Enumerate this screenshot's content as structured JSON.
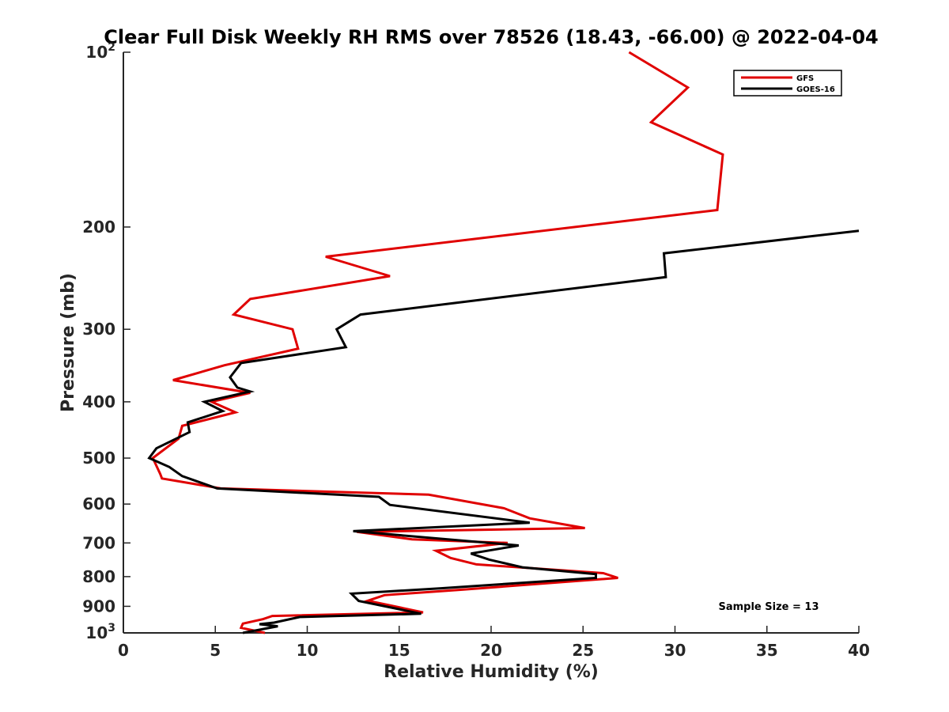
{
  "chart_data": {
    "type": "line",
    "title": "Clear Full Disk Weekly RH RMS over 78526 (18.43, -66.00) @ 2022-04-04",
    "xlabel": "Relative Humidity (%)",
    "ylabel": "Pressure (mb)",
    "xlim": [
      0,
      40
    ],
    "ylim": [
      100,
      1000
    ],
    "y_scale": "log",
    "y_reversed": true,
    "x_ticks": [
      "0",
      "5",
      "10",
      "15",
      "20",
      "25",
      "30",
      "35",
      "40"
    ],
    "y_ticks": [
      {
        "value": 100,
        "base": "10",
        "exp": "2"
      },
      {
        "value": 200,
        "label": "200"
      },
      {
        "value": 300,
        "label": "300"
      },
      {
        "value": 400,
        "label": "400"
      },
      {
        "value": 500,
        "label": "500"
      },
      {
        "value": 600,
        "label": "600"
      },
      {
        "value": 700,
        "label": "700"
      },
      {
        "value": 800,
        "label": "800"
      },
      {
        "value": 900,
        "label": "900"
      },
      {
        "value": 1000,
        "base": "10",
        "exp": "3"
      }
    ],
    "legend_position": "top-right",
    "annotation": "Sample Size = 13",
    "series": [
      {
        "name": "GFS",
        "color": "#e00000",
        "points": [
          [
            27.5,
            100
          ],
          [
            30.7,
            115
          ],
          [
            28.7,
            132
          ],
          [
            32.6,
            150
          ],
          [
            32.3,
            187
          ],
          [
            11.0,
            225
          ],
          [
            14.5,
            243
          ],
          [
            6.9,
            266
          ],
          [
            6.0,
            283
          ],
          [
            9.2,
            300
          ],
          [
            9.5,
            324
          ],
          [
            5.5,
            346
          ],
          [
            2.7,
            367
          ],
          [
            6.9,
            386
          ],
          [
            4.8,
            400
          ],
          [
            6.1,
            417
          ],
          [
            3.2,
            440
          ],
          [
            3.0,
            463
          ],
          [
            1.6,
            500
          ],
          [
            2.0,
            532
          ],
          [
            2.1,
            542
          ],
          [
            5.3,
            564
          ],
          [
            16.6,
            578
          ],
          [
            20.7,
            610
          ],
          [
            22.1,
            635
          ],
          [
            25.1,
            660
          ],
          [
            12.7,
            670
          ],
          [
            15.7,
            690
          ],
          [
            20.9,
            700
          ],
          [
            17.0,
            722
          ],
          [
            17.8,
            743
          ],
          [
            19.2,
            762
          ],
          [
            26.1,
            789
          ],
          [
            26.9,
            804
          ],
          [
            18.5,
            842
          ],
          [
            14.2,
            861
          ],
          [
            13.3,
            880
          ],
          [
            16.3,
            922
          ],
          [
            8.1,
            935
          ],
          [
            7.6,
            947
          ],
          [
            6.5,
            964
          ],
          [
            6.4,
            980
          ],
          [
            7.7,
            1000
          ]
        ]
      },
      {
        "name": "GOES-16",
        "color": "#000000",
        "points": [
          [
            40.0,
            203
          ],
          [
            29.4,
            222
          ],
          [
            29.5,
            244
          ],
          [
            12.9,
            283
          ],
          [
            11.6,
            300
          ],
          [
            12.1,
            322
          ],
          [
            6.4,
            343
          ],
          [
            5.8,
            363
          ],
          [
            6.2,
            378
          ],
          [
            6.9,
            384
          ],
          [
            4.4,
            400
          ],
          [
            5.4,
            415
          ],
          [
            3.5,
            434
          ],
          [
            3.6,
            451
          ],
          [
            1.8,
            481
          ],
          [
            1.4,
            500
          ],
          [
            2.5,
            518
          ],
          [
            3.2,
            537
          ],
          [
            5.1,
            564
          ],
          [
            13.9,
            583
          ],
          [
            14.5,
            602
          ],
          [
            22.1,
            646
          ],
          [
            12.5,
            668
          ],
          [
            21.5,
            707
          ],
          [
            18.9,
            730
          ],
          [
            19.9,
            748
          ],
          [
            21.7,
            771
          ],
          [
            25.7,
            792
          ],
          [
            25.7,
            804
          ],
          [
            17.2,
            838
          ],
          [
            12.4,
            856
          ],
          [
            12.8,
            881
          ],
          [
            16.2,
            927
          ],
          [
            9.6,
            939
          ],
          [
            8.2,
            960
          ],
          [
            7.4,
            966
          ],
          [
            8.4,
            974
          ],
          [
            6.5,
            1000
          ]
        ]
      }
    ]
  }
}
